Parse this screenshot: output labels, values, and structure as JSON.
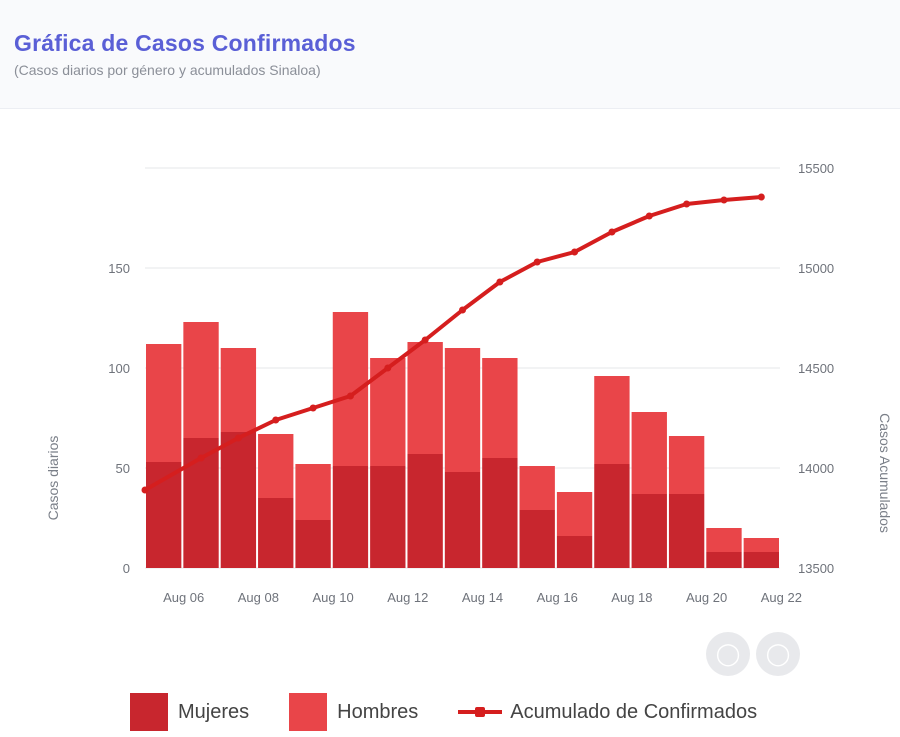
{
  "header": {
    "title": "Gráfica de Casos Confirmados",
    "subtitle": "(Casos diarios por género y acumulados Sinaloa)"
  },
  "colors": {
    "mujeres": "#c8262e",
    "hombres": "#e94549",
    "acumulado": "#d51e1e",
    "title": "#5a5fd6"
  },
  "icons": [
    "zoom-out-icon",
    "zoom-in-icon"
  ],
  "chart_data": {
    "type": "bar",
    "stacked": true,
    "categories": [
      "Aug 06",
      "Aug 07",
      "Aug 08",
      "Aug 09",
      "Aug 10",
      "Aug 11",
      "Aug 12",
      "Aug 13",
      "Aug 14",
      "Aug 15",
      "Aug 16",
      "Aug 17",
      "Aug 18",
      "Aug 19",
      "Aug 20",
      "Aug 21",
      "Aug 22"
    ],
    "tick_labels": [
      "Aug 06",
      "Aug 08",
      "Aug 10",
      "Aug 12",
      "Aug 14",
      "Aug 16",
      "Aug 18",
      "Aug 20",
      "Aug 22"
    ],
    "series": [
      {
        "name": "Mujeres",
        "type": "bar",
        "values": [
          53,
          65,
          68,
          35,
          24,
          51,
          51,
          57,
          48,
          55,
          29,
          16,
          52,
          37,
          37,
          8,
          8
        ]
      },
      {
        "name": "Hombres",
        "type": "bar",
        "values": [
          59,
          58,
          42,
          32,
          28,
          77,
          54,
          56,
          62,
          50,
          22,
          22,
          44,
          41,
          29,
          12,
          7
        ]
      },
      {
        "name": "Acumulado de Confirmados",
        "type": "line",
        "axis": "right",
        "values": [
          13890,
          14050,
          14150,
          14240,
          14300,
          14360,
          14500,
          14640,
          14790,
          14930,
          15030,
          15080,
          15180,
          15260,
          15320,
          15340,
          15355
        ]
      }
    ],
    "ylabel": "Casos diarios",
    "ylabel_right": "Casos Acumulados",
    "ylim": [
      0,
      200
    ],
    "yticks": [
      0,
      50,
      100,
      150
    ],
    "ylim_right": [
      13500,
      15500
    ],
    "yticks_right": [
      13500,
      14000,
      14500,
      15000,
      15500
    ],
    "grid": true,
    "legend_position": "bottom"
  },
  "legend": {
    "mujeres": "Mujeres",
    "hombres": "Hombres",
    "acumulado": "Acumulado de Confirmados"
  }
}
